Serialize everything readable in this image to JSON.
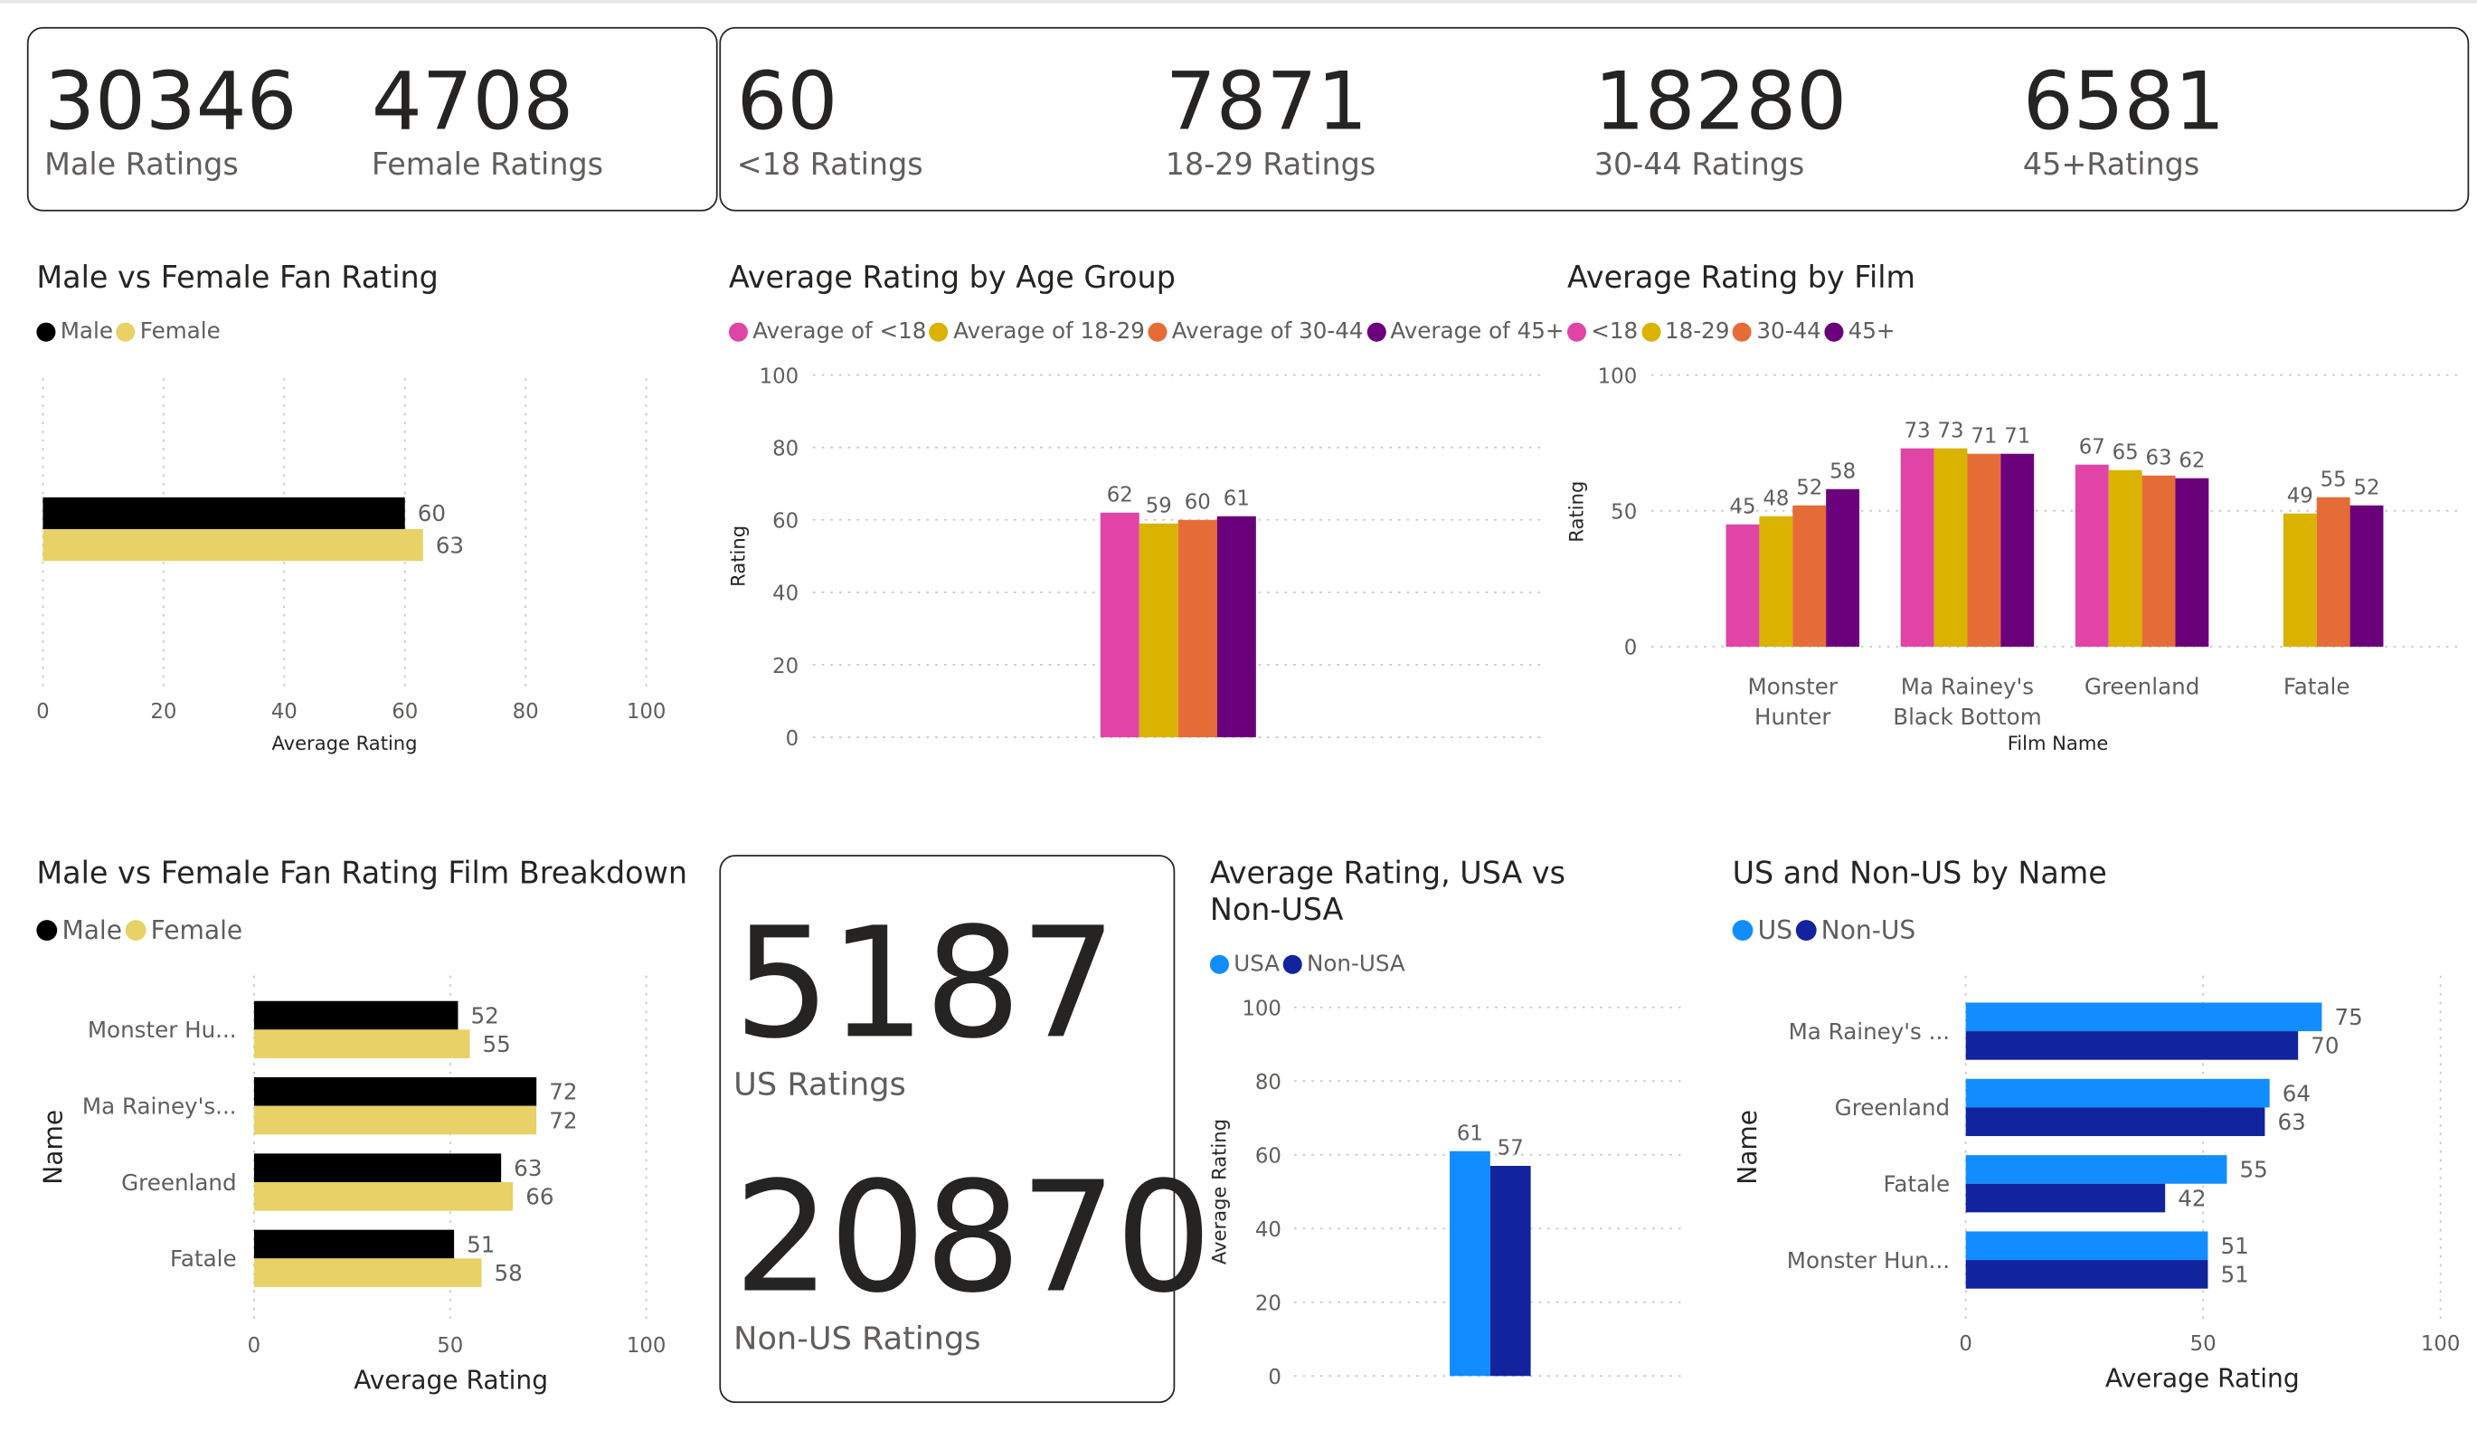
{
  "kpis": {
    "male": {
      "value": "30346",
      "label": "Male Ratings"
    },
    "female": {
      "value": "4708",
      "label": "Female Ratings"
    },
    "under18": {
      "value": "60",
      "label": "<18 Ratings"
    },
    "age18_29": {
      "value": "7871",
      "label": "18-29 Ratings"
    },
    "age30_44": {
      "value": "18280",
      "label": "30-44 Ratings"
    },
    "age45": {
      "value": "6581",
      "label": "45+Ratings"
    },
    "us": {
      "value": "5187",
      "label": "US Ratings"
    },
    "non_us": {
      "value": "20870",
      "label": "Non-US Ratings"
    }
  },
  "colors": {
    "male": "#000000",
    "female": "#e8d166",
    "under18": "#e044a7",
    "age18_29": "#d9b300",
    "age30_44": "#e66c37",
    "age45": "#6b007b",
    "us": "#118dff",
    "non_us": "#12239e"
  },
  "chart_data": [
    {
      "id": "male_female",
      "type": "bar",
      "orientation": "horizontal",
      "title": "Male vs Female Fan Rating",
      "legend": [
        "Male",
        "Female"
      ],
      "series": [
        {
          "name": "Male",
          "values": [
            60
          ]
        },
        {
          "name": "Female",
          "values": [
            63
          ]
        }
      ],
      "xlabel": "Average Rating",
      "ylabel": "",
      "xlim": [
        0,
        100
      ],
      "ticks": [
        "0",
        "20",
        "40",
        "60",
        "80",
        "100"
      ]
    },
    {
      "id": "age_group",
      "type": "bar",
      "title": "Average Rating by Age Group",
      "legend": [
        "Average of <18",
        "Average of 18-29",
        "Average of 30-44",
        "Average of 45+"
      ],
      "series": [
        {
          "name": "Average of <18",
          "values": [
            62
          ]
        },
        {
          "name": "Average of 18-29",
          "values": [
            59
          ]
        },
        {
          "name": "Average of 30-44",
          "values": [
            60
          ]
        },
        {
          "name": "Average of 45+",
          "values": [
            61
          ]
        }
      ],
      "xlabel": "",
      "ylabel": "Rating",
      "ylim": [
        0,
        100
      ],
      "ticks": [
        "0",
        "20",
        "40",
        "60",
        "80",
        "100"
      ]
    },
    {
      "id": "by_film",
      "type": "bar",
      "title": "Average Rating by Film",
      "legend": [
        "<18",
        "18-29",
        "30-44",
        "45+"
      ],
      "categories": [
        [
          "Monster",
          "Hunter"
        ],
        [
          "Ma Rainey's",
          "Black Bottom"
        ],
        [
          "Greenland"
        ],
        [
          "Fatale"
        ]
      ],
      "series": [
        {
          "name": "<18",
          "values": [
            45,
            73,
            67,
            null
          ]
        },
        {
          "name": "18-29",
          "values": [
            48,
            73,
            65,
            49
          ]
        },
        {
          "name": "30-44",
          "values": [
            52,
            71,
            63,
            55
          ]
        },
        {
          "name": "45+",
          "values": [
            58,
            71,
            62,
            52
          ]
        }
      ],
      "xlabel": "Film Name",
      "ylabel": "Rating",
      "ylim": [
        0,
        100
      ],
      "ticks": [
        "0",
        "50",
        "100"
      ]
    },
    {
      "id": "film_breakdown",
      "type": "bar",
      "orientation": "horizontal",
      "title": "Male vs Female Fan Rating Film Breakdown",
      "legend": [
        "Male",
        "Female"
      ],
      "categories": [
        "Monster Hu...",
        "Ma Rainey's...",
        "Greenland",
        "Fatale"
      ],
      "series": [
        {
          "name": "Male",
          "values": [
            52,
            72,
            63,
            51
          ]
        },
        {
          "name": "Female",
          "values": [
            55,
            72,
            66,
            58
          ]
        }
      ],
      "xlabel": "Average Rating",
      "ylabel": "Name",
      "xlim": [
        0,
        100
      ],
      "ticks": [
        "0",
        "50",
        "100"
      ]
    },
    {
      "id": "usa_vs_non",
      "type": "bar",
      "title": "Average Rating, USA vs Non-USA",
      "title_lines": [
        "Average Rating, USA vs",
        "Non-USA"
      ],
      "legend": [
        "USA",
        "Non-USA"
      ],
      "series": [
        {
          "name": "USA",
          "values": [
            61
          ]
        },
        {
          "name": "Non-USA",
          "values": [
            57
          ]
        }
      ],
      "xlabel": "",
      "ylabel": "Average Rating",
      "ylim": [
        0,
        100
      ],
      "ticks": [
        "0",
        "20",
        "40",
        "60",
        "80",
        "100"
      ]
    },
    {
      "id": "us_by_name",
      "type": "bar",
      "orientation": "horizontal",
      "title": "US and Non-US by Name",
      "legend": [
        "US",
        "Non-US"
      ],
      "categories": [
        "Ma Rainey's ...",
        "Greenland",
        "Fatale",
        "Monster Hun..."
      ],
      "series": [
        {
          "name": "US",
          "values": [
            75,
            64,
            55,
            51
          ]
        },
        {
          "name": "Non-US",
          "values": [
            70,
            63,
            42,
            51
          ]
        }
      ],
      "xlabel": "Average Rating",
      "ylabel": "Name",
      "xlim": [
        0,
        100
      ],
      "ticks": [
        "0",
        "50",
        "100"
      ]
    }
  ]
}
